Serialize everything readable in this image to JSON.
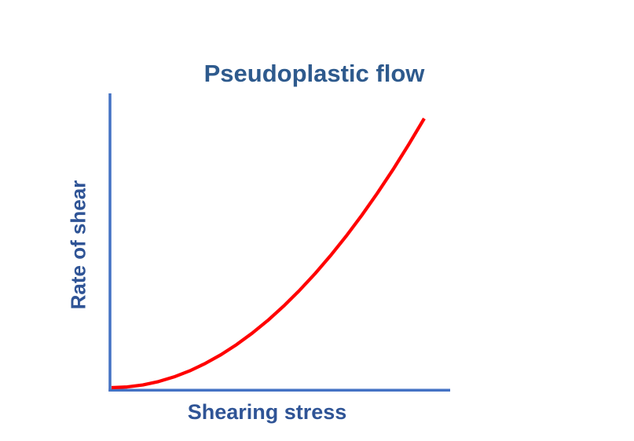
{
  "title": "Pseudoplastic flow",
  "colors": {
    "background": "#ffffff",
    "title_text": "#2e5a8d",
    "axis_label_text": "#2f5496",
    "axis_line": "#4472c4",
    "curve": "#ff0000"
  },
  "chart_data": {
    "type": "line",
    "title": "Pseudoplastic flow",
    "xlabel": "Shearing stress",
    "ylabel": "Rate of shear",
    "grid": false,
    "legend": null,
    "x_tick_labels": [],
    "y_tick_labels": [],
    "axes_note": "Conceptual unlabeled axes; rate of shear rises with increasing slope vs shearing stress (shear-thinning behavior, approx. y = x^2 in normalized units)",
    "xlim": [
      0,
      1
    ],
    "ylim": [
      0,
      1
    ],
    "series": [
      {
        "name": "pseudoplastic-curve",
        "color": "#ff0000",
        "x": [
          0,
          0.05,
          0.1,
          0.15,
          0.2,
          0.25,
          0.3,
          0.35,
          0.4,
          0.45,
          0.5,
          0.55,
          0.6,
          0.65,
          0.7,
          0.75,
          0.8,
          0.85,
          0.9,
          0.95,
          1
        ],
        "y": [
          0,
          0.0025,
          0.01,
          0.0225,
          0.04,
          0.0625,
          0.09,
          0.1225,
          0.16,
          0.2025,
          0.25,
          0.3025,
          0.36,
          0.4225,
          0.49,
          0.5625,
          0.64,
          0.7225,
          0.81,
          0.9025,
          1
        ]
      }
    ]
  }
}
